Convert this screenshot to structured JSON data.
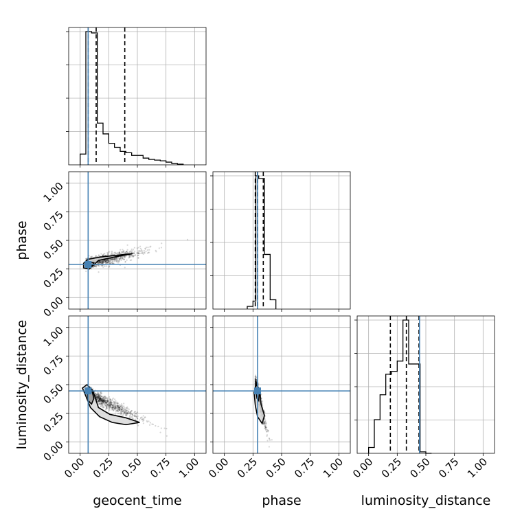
{
  "chart_data": {
    "type": "corner",
    "parameters": [
      "geocent_time",
      "phase",
      "luminosity_distance"
    ],
    "axis_labels": {
      "geocent_time": "geocent_time",
      "phase": "phase",
      "luminosity_distance": "luminosity_distance"
    },
    "xlim": [
      -0.1,
      1.1
    ],
    "ylim": [
      -0.1,
      1.1
    ],
    "ticks": [
      0.0,
      0.25,
      0.5,
      0.75,
      1.0
    ],
    "tick_labels": [
      "0.00",
      "0.25",
      "0.50",
      "0.75",
      "1.00"
    ],
    "grid": true,
    "truth_color": "#4682b4",
    "line_color": "#000000",
    "truths": {
      "geocent_time": 0.07,
      "phase": 0.29,
      "luminosity_distance": 0.445
    },
    "histograms": {
      "geocent_time": {
        "bin_edges": [
          0.0,
          0.05,
          0.1,
          0.15,
          0.2,
          0.25,
          0.3,
          0.35,
          0.4,
          0.45,
          0.5,
          0.55,
          0.6,
          0.65,
          0.7,
          0.75,
          0.8,
          0.85,
          0.9
        ],
        "counts": [
          0.08,
          0.99,
          0.98,
          0.31,
          0.23,
          0.16,
          0.13,
          0.1,
          0.09,
          0.07,
          0.07,
          0.05,
          0.04,
          0.035,
          0.03,
          0.02,
          0.01,
          0.005
        ],
        "quantiles": [
          0.07,
          0.14,
          0.39
        ]
      },
      "phase": {
        "bin_edges": [
          0.2,
          0.25,
          0.275,
          0.3,
          0.35,
          0.4,
          0.45
        ],
        "counts": [
          0.02,
          0.06,
          1.0,
          0.98,
          0.41,
          0.07
        ],
        "quantiles": [
          0.27,
          0.29,
          0.34
        ]
      },
      "luminosity_distance": {
        "bin_edges": [
          0.0,
          0.05,
          0.1,
          0.15,
          0.2,
          0.25,
          0.3,
          0.35,
          0.4,
          0.45,
          0.5,
          0.55
        ],
        "counts": [
          0.04,
          0.23,
          0.4,
          0.54,
          0.56,
          0.63,
          0.91,
          0.61,
          0.61,
          0.01,
          0.0
        ],
        "quantiles": [
          0.19,
          0.33,
          0.44
        ]
      }
    },
    "scatter": [
      {
        "x_param": "geocent_time",
        "y_param": "phase",
        "trend": "phase rises from about 0.29 to 0.50 as geocent_time goes from 0.05 to 0.92"
      },
      {
        "x_param": "geocent_time",
        "y_param": "luminosity_distance",
        "trend": "luminosity_distance falls from about 0.47 to 0.05 as geocent_time goes from 0.05 to 0.92"
      },
      {
        "x_param": "phase",
        "y_param": "luminosity_distance",
        "trend": "luminosity_distance falls from about 0.47 to 0.05 as phase goes from 0.27 to 0.40"
      }
    ]
  }
}
